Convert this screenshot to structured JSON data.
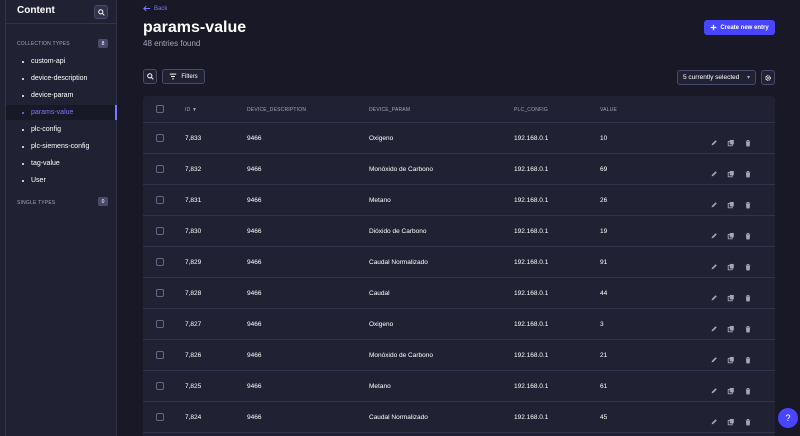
{
  "sidebar": {
    "title": "Content",
    "collection_types_label": "COLLECTION TYPES",
    "collection_types_count": "8",
    "items": [
      {
        "label": "custom-api",
        "active": false
      },
      {
        "label": "device-description",
        "active": false
      },
      {
        "label": "device-param",
        "active": false
      },
      {
        "label": "params-value",
        "active": true
      },
      {
        "label": "plc-config",
        "active": false
      },
      {
        "label": "plc-siemens-config",
        "active": false
      },
      {
        "label": "tag-value",
        "active": false
      },
      {
        "label": "User",
        "active": false
      }
    ],
    "single_types_label": "SINGLE TYPES",
    "single_types_count": "0"
  },
  "header": {
    "back_label": "Back",
    "title": "params-value",
    "subtitle": "48 entries found",
    "create_label": "Create new entry"
  },
  "toolbar": {
    "filters_label": "Filters",
    "columns_selected": "5 currently selected"
  },
  "table": {
    "columns": [
      "ID",
      "DEVICE_DESCRIPTION",
      "DEVICE_PARAM",
      "PLC_CONFIG",
      "VALUE"
    ],
    "rows": [
      {
        "id": "7,833",
        "device_description": "9466",
        "device_param": "Oxigeno",
        "plc_config": "192.168.0.1",
        "value": "10"
      },
      {
        "id": "7,832",
        "device_description": "9466",
        "device_param": "Monóxido de Carbono",
        "plc_config": "192.168.0.1",
        "value": "69"
      },
      {
        "id": "7,831",
        "device_description": "9466",
        "device_param": "Metano",
        "plc_config": "192.168.0.1",
        "value": "26"
      },
      {
        "id": "7,830",
        "device_description": "9466",
        "device_param": "Dióxido de Carbono",
        "plc_config": "192.168.0.1",
        "value": "19"
      },
      {
        "id": "7,829",
        "device_description": "9466",
        "device_param": "Caudal Normalizado",
        "plc_config": "192.168.0.1",
        "value": "91"
      },
      {
        "id": "7,828",
        "device_description": "9466",
        "device_param": "Caudal",
        "plc_config": "192.168.0.1",
        "value": "44"
      },
      {
        "id": "7,827",
        "device_description": "9466",
        "device_param": "Oxigeno",
        "plc_config": "192.168.0.1",
        "value": "3"
      },
      {
        "id": "7,826",
        "device_description": "9466",
        "device_param": "Monóxido de Carbono",
        "plc_config": "192.168.0.1",
        "value": "21"
      },
      {
        "id": "7,825",
        "device_description": "9466",
        "device_param": "Metano",
        "plc_config": "192.168.0.1",
        "value": "61"
      },
      {
        "id": "7,824",
        "device_description": "9466",
        "device_param": "Caudal Normalizado",
        "plc_config": "192.168.0.1",
        "value": "45"
      }
    ]
  },
  "help_label": "?",
  "colors": {
    "accent": "#4945ff",
    "link": "#7b79ff",
    "background": "#181826",
    "surface": "#212134",
    "border": "#32324d"
  },
  "icons": [
    "search-icon",
    "filter-icon",
    "plus-icon",
    "gear-icon",
    "arrow-left-icon",
    "chevron-down-icon",
    "sort-down-icon",
    "pencil-icon",
    "duplicate-icon",
    "trash-icon"
  ]
}
